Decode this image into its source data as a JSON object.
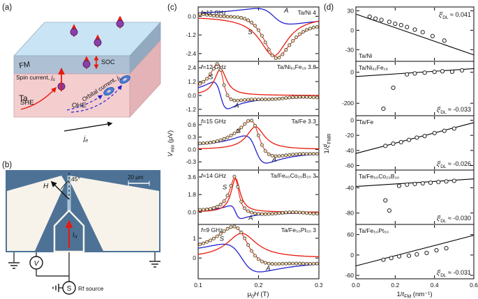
{
  "figure": {
    "panel_labels": {
      "a": "(a)",
      "b": "(b)",
      "c": "(c)",
      "d": "(d)"
    }
  },
  "panel_a": {
    "fm_label": "FM",
    "ta_label": "Ta",
    "spin_current_label": "Spin current, ",
    "spin_current_j": "j",
    "spin_current_sub": "s",
    "soc_label": "SOC",
    "she_label": "SHE",
    "ohe_label": "OHE",
    "orbital_label": "Orbital current, ",
    "orbital_j": "j",
    "orbital_sub": "L",
    "je_j": "j",
    "je_sub": "e",
    "colors": {
      "red": "#e8190c",
      "blue": "#2020cf",
      "fm_front": "#aec0d4",
      "ta_front": "#f4cdcf",
      "top_face": "#c9e5f5",
      "sphere": "#8b3fa8"
    }
  },
  "panel_b": {
    "angle_label": "45°",
    "h_label": "H",
    "scale_label": "20 μm",
    "irf_label": "I",
    "irf_sub": "rf",
    "voltmeter_label": "V",
    "source_symbol": "S",
    "source_label": "Rf source",
    "colors": {
      "background": "#4d7296",
      "metal": "#f7f3ea"
    }
  },
  "panel_c_axes": {
    "y_main": "V",
    "y_sub": "mix",
    "y_unit": " (μV)",
    "x_mu": "μ",
    "x_sub": "0",
    "x_h": "H",
    "x_unit": " (T)"
  },
  "panel_d_axes": {
    "y_pre": "1/",
    "y_sym": "ξ",
    "y_sup": "j",
    "y_sub": "FMR",
    "x_pre": "1/",
    "x_t": "t",
    "x_sub": "FM",
    "x_unit": " (nm⁻¹)"
  },
  "chart_data": [
    {
      "id": "panel_c",
      "type": "line",
      "xlabel": "μ0H (T)",
      "ylabel": "Vmix (μV)",
      "xlim": [
        0.1,
        0.3
      ],
      "xticks": [
        0.1,
        0.2,
        0.3
      ],
      "xtick_labels": [
        "0.1",
        "0.2",
        "0.3"
      ],
      "s_label": "S",
      "a_label": "A",
      "colors": {
        "S": "#e8190c",
        "A": "#2020cf",
        "point_fill": "#ffdfa8",
        "point_stroke": "#3a3a3a"
      },
      "subplots": [
        {
          "f_label": "f=12 GHz",
          "sample": "Ta/Ni 4",
          "yticks": [
            0,
            -1.2,
            -2.4
          ],
          "ytick_labels": [
            "0.0",
            "-1.2",
            "-2.4"
          ],
          "ylim": [
            -2.9,
            0.6
          ],
          "resonance": {
            "H0": 0.225,
            "w": 0.028,
            "S": -2.55,
            "A": -1.0
          },
          "s_label_pos": [
            0.186,
            -1.15
          ],
          "a_label_pos": [
            0.246,
            0.25
          ]
        },
        {
          "f_label": "f=12 GHz",
          "sample": "Ta/Ni₈₁Fe₁₉ 3.8",
          "yticks": [
            2.4,
            1.2,
            0,
            -1.2
          ],
          "ytick_labels": [
            "2.4",
            "1.2",
            "0.0",
            "-1.2"
          ],
          "ylim": [
            -1.75,
            2.95
          ],
          "resonance": {
            "H0": 0.137,
            "w": 0.012,
            "S": 2.3,
            "A": -2.3
          },
          "s_label_pos": [
            0.121,
            1.4
          ],
          "a_label_pos": [
            0.164,
            -1.05
          ]
        },
        {
          "f_label": "f=15 GHz",
          "sample": "Ta/Fe 3.3",
          "yticks": [
            0.6,
            0.3,
            0,
            -0.3
          ],
          "ytick_labels": [
            "0.6",
            "0.3",
            "0.0",
            "-0.3"
          ],
          "ylim": [
            -0.5,
            0.82
          ],
          "resonance": {
            "H0": 0.195,
            "w": 0.018,
            "S": 0.55,
            "A": -0.66
          },
          "s_label_pos": [
            0.167,
            0.4
          ],
          "a_label_pos": [
            0.226,
            -0.3
          ]
        },
        {
          "f_label": "f=14 GHz",
          "sample": "Ta/Fe₆₀Co₂₀B₂₀ 3",
          "yticks": [
            3.6,
            1.8,
            0
          ],
          "ytick_labels": [
            "3.6",
            "1.8",
            "0.0"
          ],
          "ylim": [
            -1.25,
            4.3
          ],
          "resonance": {
            "H0": 0.162,
            "w": 0.009,
            "S": 3.45,
            "A": -1.3
          },
          "s_label_pos": [
            0.144,
            2.35
          ],
          "a_label_pos": [
            0.187,
            -0.8
          ]
        },
        {
          "f_label": "f=9 GHz",
          "sample": "Ta/Fe₅₀Pt₅₀ 3",
          "yticks": [
            1,
            0
          ],
          "ytick_labels": [
            "1",
            "0"
          ],
          "ylim": [
            -1.05,
            1.7
          ],
          "resonance": {
            "H0": 0.172,
            "w": 0.03,
            "S": 1.25,
            "A": -1.4
          },
          "s_label_pos": [
            0.139,
            0.88
          ],
          "a_label_pos": [
            0.216,
            -0.62
          ]
        }
      ]
    },
    {
      "id": "panel_d",
      "type": "scatter",
      "xlabel": "1/tFM (nm⁻¹)",
      "ylabel": "1/ξ^j_FMR",
      "xlim": [
        0,
        0.6
      ],
      "xticks": [
        0,
        0.2,
        0.4,
        0.6
      ],
      "xtick_labels": [
        "0.0",
        "0.2",
        "0.4",
        "0.6"
      ],
      "xi_sym": "ξ",
      "xi_sup": "j",
      "xi_sub": "DL",
      "subplots": [
        {
          "sample": "Ta/Ni",
          "xi_value": " ≈ 0.041",
          "yticks": [
            30,
            0,
            -30
          ],
          "ytick_labels": [
            "30",
            "0",
            "-30"
          ],
          "ylim": [
            -48,
            36
          ],
          "fit": {
            "intercept": 25,
            "slope": -105
          },
          "points": [
            [
              0.07,
              21
            ],
            [
              0.1,
              18
            ],
            [
              0.13,
              16
            ],
            [
              0.17,
              13
            ],
            [
              0.2,
              10
            ],
            [
              0.23,
              8
            ],
            [
              0.26,
              5
            ],
            [
              0.3,
              1
            ],
            [
              0.34,
              -3
            ],
            [
              0.39,
              -9
            ],
            [
              0.45,
              -16
            ]
          ],
          "sample_pos": "bl",
          "xi_pos": "tr"
        },
        {
          "sample": "Ta/Ni₈₁Fe₁₉",
          "xi_value": " ≈ -0.033",
          "yticks": [
            0,
            -200
          ],
          "ytick_labels": [
            "0",
            "-200"
          ],
          "ylim": [
            -280,
            70
          ],
          "fit": {
            "intercept": -28,
            "slope": 85
          },
          "points": [
            [
              0.14,
              -235
            ],
            [
              0.19,
              -100
            ],
            [
              0.26,
              -14
            ],
            [
              0.3,
              -8
            ],
            [
              0.35,
              -3
            ],
            [
              0.4,
              2
            ],
            [
              0.44,
              6
            ],
            [
              0.49,
              3
            ],
            [
              0.54,
              12
            ]
          ],
          "sample_pos": "tl",
          "xi_pos": "br"
        },
        {
          "sample": "Ta/Fe",
          "xi_value": " ≈ -0.026",
          "yticks": [
            0,
            -20,
            -40,
            -60
          ],
          "ytick_labels": [
            "0",
            "-20",
            "-40",
            "-60"
          ],
          "ylim": [
            -66,
            6
          ],
          "fit": {
            "intercept": -44,
            "slope": 68
          },
          "points": [
            [
              0.15,
              -34
            ],
            [
              0.19,
              -31
            ],
            [
              0.23,
              -29
            ],
            [
              0.27,
              -26
            ],
            [
              0.31,
              -23
            ],
            [
              0.35,
              -21
            ],
            [
              0.4,
              -17
            ],
            [
              0.45,
              -14
            ],
            [
              0.5,
              -11
            ]
          ],
          "sample_pos": "tl",
          "xi_pos": "br"
        },
        {
          "sample": "Ta/Fe₆₀Co₂₀B₂₀",
          "xi_value": " ≈ -0.030",
          "yticks": [
            -40,
            -80
          ],
          "ytick_labels": [
            "-40",
            "-80"
          ],
          "ylim": [
            -98,
            -12
          ],
          "fit": {
            "intercept": -38,
            "slope": 20
          },
          "points": [
            [
              0.15,
              -60
            ],
            [
              0.17,
              -76
            ],
            [
              0.22,
              -37
            ],
            [
              0.26,
              -35
            ],
            [
              0.3,
              -34
            ],
            [
              0.34,
              -33
            ],
            [
              0.38,
              -32
            ],
            [
              0.42,
              -31
            ],
            [
              0.46,
              -30
            ],
            [
              0.5,
              -29
            ]
          ],
          "sample_pos": "tl",
          "xi_pos": "br"
        },
        {
          "sample": "Ta/Fe₅₀Pt₅₀",
          "xi_value": " ≈ -0.031",
          "yticks": [
            60,
            0,
            -60
          ],
          "ytick_labels": [
            "60",
            "0",
            "-60"
          ],
          "ylim": [
            -70,
            90
          ],
          "fit": {
            "intercept": -32,
            "slope": 150
          },
          "points": [
            [
              0.14,
              -14
            ],
            [
              0.18,
              -9
            ],
            [
              0.22,
              -4
            ],
            [
              0.27,
              -2
            ],
            [
              0.31,
              2
            ],
            [
              0.36,
              6
            ],
            [
              0.41,
              14
            ],
            [
              0.46,
              20
            ]
          ],
          "sample_pos": "tl",
          "xi_pos": "br"
        }
      ]
    }
  ]
}
